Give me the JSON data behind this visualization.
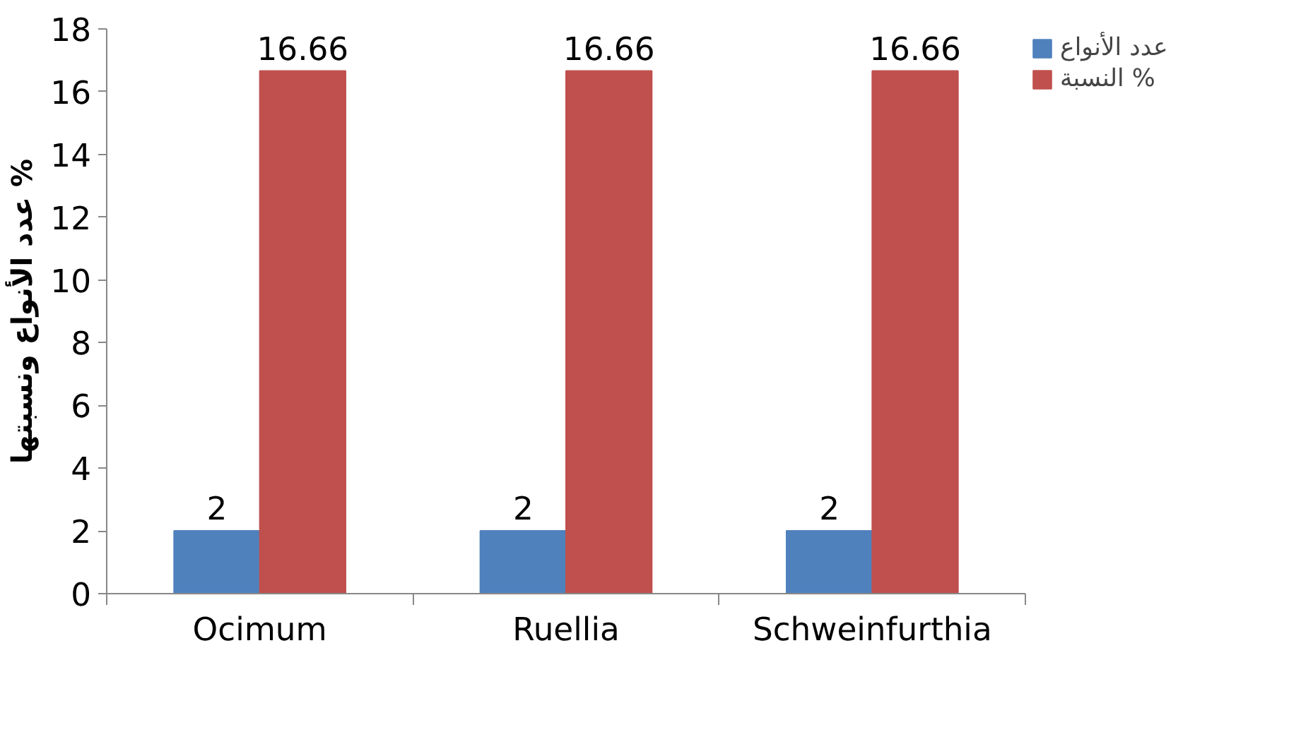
{
  "chart_data": {
    "type": "bar",
    "ylabel": "عدد الأنواع ونسبتها %",
    "categories": [
      "Ocimum",
      "Ruellia",
      "Schweinfurthia"
    ],
    "series": [
      {
        "name": "عدد الأنواع",
        "color": "#4f81bd",
        "values": [
          2,
          2,
          2
        ]
      },
      {
        "name": "النسبة %",
        "color": "#c0504d",
        "values": [
          16.66,
          16.66,
          16.66
        ]
      }
    ],
    "ylim": [
      0,
      18
    ],
    "yticks": [
      0,
      2,
      4,
      6,
      8,
      10,
      12,
      14,
      16,
      18
    ],
    "data_labels": true,
    "legend": "top right",
    "grid": false
  }
}
